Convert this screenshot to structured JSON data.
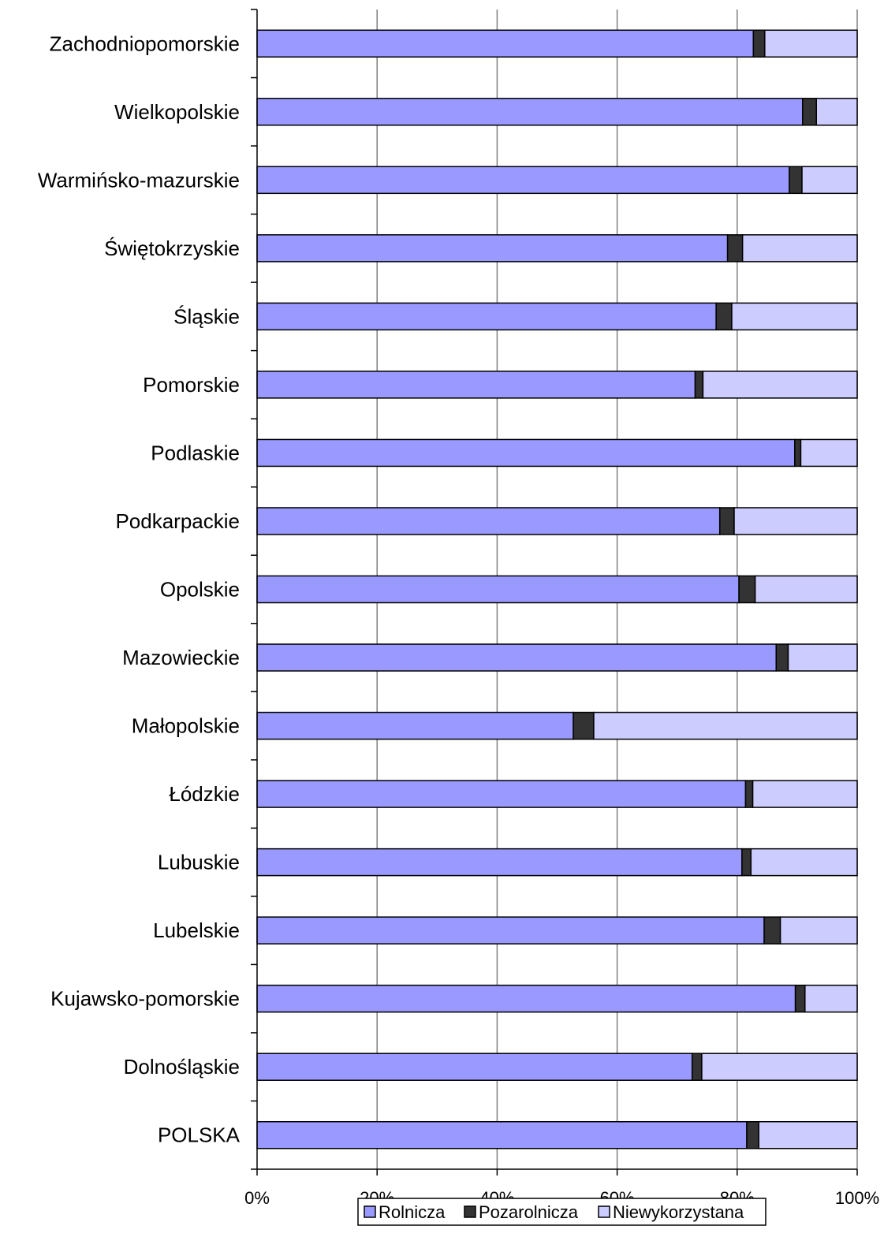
{
  "chart_data": {
    "type": "bar",
    "orientation": "horizontal",
    "stacked": "percent",
    "categories": [
      "Zachodniopomorskie",
      "Wielkopolskie",
      "Warmińsko-mazurskie",
      "Świętokrzyskie",
      "Śląskie",
      "Pomorskie",
      "Podlaskie",
      "Podkarpackie",
      "Opolskie",
      "Mazowieckie",
      "Małopolskie",
      "Łódzkie",
      "Lubuskie",
      "Lubelskie",
      "Kujawsko-pomorskie",
      "Dolnośląskie",
      "POLSKA"
    ],
    "series": [
      {
        "name": "Rolnicza",
        "color": "#9999ff",
        "values": [
          82.7,
          90.9,
          88.7,
          78.4,
          76.5,
          73.0,
          89.6,
          77.1,
          80.3,
          86.5,
          52.7,
          81.4,
          80.8,
          84.5,
          89.7,
          72.5,
          81.6
        ]
      },
      {
        "name": "Pozarolnicza",
        "color": "#333333",
        "values": [
          1.9,
          2.3,
          2.1,
          2.5,
          2.6,
          1.3,
          1.0,
          2.4,
          2.7,
          2.0,
          3.4,
          1.2,
          1.5,
          2.7,
          1.6,
          1.6,
          2.0
        ]
      },
      {
        "name": "Niewykorzystana",
        "color": "#ccccff",
        "values": [
          15.4,
          6.8,
          9.2,
          19.1,
          20.9,
          25.7,
          9.4,
          20.5,
          17.0,
          11.5,
          43.9,
          17.4,
          17.7,
          12.8,
          8.7,
          25.9,
          16.4
        ]
      }
    ],
    "x_ticks": [
      "0%",
      "20%",
      "40%",
      "60%",
      "80%",
      "100%"
    ],
    "xlim": [
      0,
      100
    ],
    "grid": "vertical",
    "legend_position": "bottom"
  }
}
